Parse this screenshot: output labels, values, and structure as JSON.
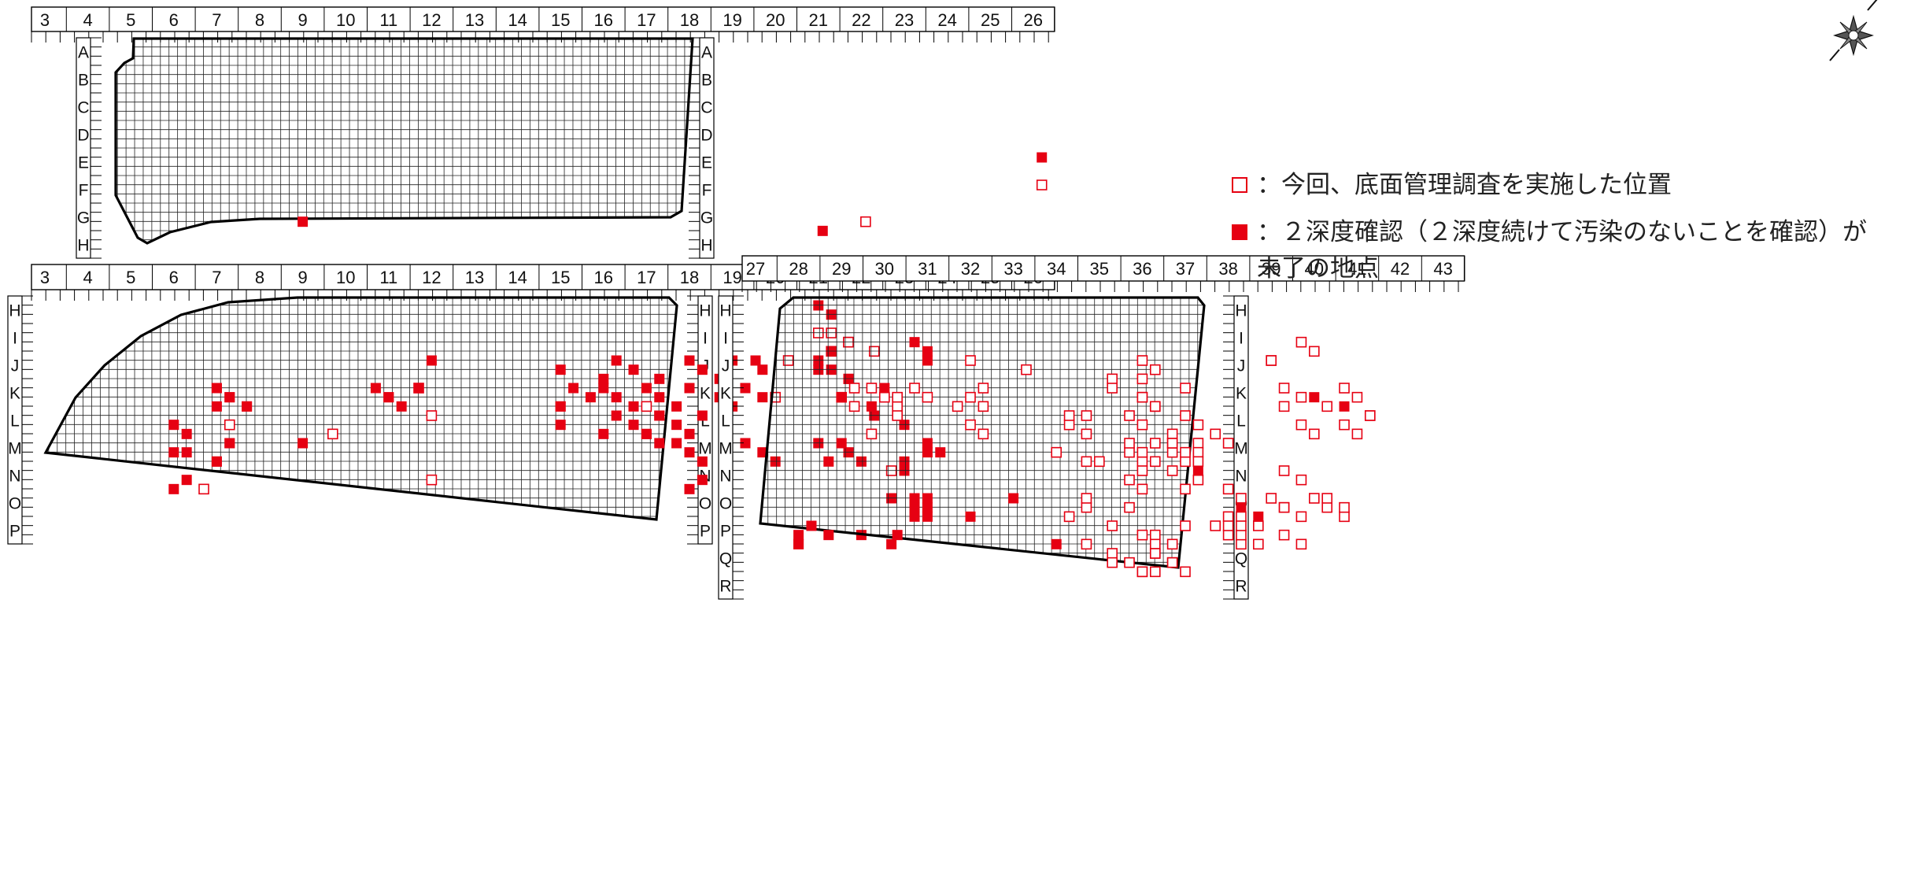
{
  "north_marker": "north-compass-icon",
  "colors": {
    "mark": "#e60012",
    "line": "#000000",
    "grid": "#222222"
  },
  "legend": {
    "open_label": "：今回、底面管理調査を実施した位置",
    "filled_label": "：２深度確認（２深度続けて汚染のないことを確認）が未了の地点"
  },
  "panels": [
    {
      "id": "upper-left",
      "columns": [
        "3",
        "4",
        "5",
        "6",
        "7",
        "8",
        "9",
        "10",
        "11",
        "12",
        "13",
        "14",
        "15",
        "16",
        "17",
        "18",
        "19",
        "20",
        "21",
        "22",
        "23",
        "24",
        "25",
        "26"
      ],
      "rows": [
        "A",
        "B",
        "C",
        "D",
        "E",
        "F",
        "G",
        "H"
      ],
      "filled": [
        [
          26.2,
          "E"
        ],
        [
          9.0,
          "G"
        ],
        [
          21.1,
          "G"
        ]
      ],
      "open": [
        [
          26.2,
          "F"
        ],
        [
          22.1,
          "G"
        ]
      ]
    },
    {
      "id": "lower-left",
      "columns": [
        "3",
        "4",
        "5",
        "6",
        "7",
        "8",
        "9",
        "10",
        "11",
        "12",
        "13",
        "14",
        "15",
        "16",
        "17",
        "18",
        "19",
        "20",
        "21",
        "22",
        "23",
        "24",
        "25",
        "26"
      ],
      "rows": [
        "H",
        "I",
        "J",
        "K",
        "L",
        "M",
        "N",
        "O",
        "P"
      ],
      "filled": [
        [
          21.0,
          "H"
        ],
        [
          21.3,
          "H"
        ],
        [
          21.3,
          "I"
        ],
        [
          18.0,
          "J"
        ],
        [
          21.0,
          "J"
        ],
        [
          21.7,
          "J"
        ],
        [
          21.0,
          "J"
        ],
        [
          21.3,
          "J"
        ],
        [
          21.7,
          "J"
        ],
        [
          12.0,
          "J"
        ],
        [
          15.0,
          "J"
        ],
        [
          16.0,
          "J"
        ],
        [
          16.3,
          "J"
        ],
        [
          16.7,
          "J"
        ],
        [
          17.3,
          "J"
        ],
        [
          18.0,
          "J"
        ],
        [
          18.3,
          "J"
        ],
        [
          18.7,
          "J"
        ],
        [
          19.0,
          "J"
        ],
        [
          19.7,
          "J"
        ],
        [
          7.0,
          "K"
        ],
        [
          7.0,
          "K"
        ],
        [
          7.3,
          "K"
        ],
        [
          7.7,
          "K"
        ],
        [
          7.0,
          "K"
        ],
        [
          7.3,
          "K"
        ],
        [
          7.7,
          "K"
        ],
        [
          10.7,
          "K"
        ],
        [
          11.0,
          "K"
        ],
        [
          11.3,
          "K"
        ],
        [
          11.7,
          "K"
        ],
        [
          11.0,
          "K"
        ],
        [
          15.0,
          "K"
        ],
        [
          15.3,
          "K"
        ],
        [
          15.7,
          "K"
        ],
        [
          15.0,
          "K"
        ],
        [
          16.0,
          "K"
        ],
        [
          16.3,
          "K"
        ],
        [
          16.7,
          "K"
        ],
        [
          17.0,
          "K"
        ],
        [
          17.3,
          "K"
        ],
        [
          17.7,
          "K"
        ],
        [
          18.0,
          "K"
        ],
        [
          18.7,
          "K"
        ],
        [
          19.0,
          "K"
        ],
        [
          19.3,
          "K"
        ],
        [
          19.7,
          "K"
        ],
        [
          17.0,
          "L"
        ],
        [
          17.3,
          "L"
        ],
        [
          17.7,
          "L"
        ],
        [
          18.0,
          "L"
        ],
        [
          18.3,
          "L"
        ],
        [
          15.0,
          "L"
        ],
        [
          16.0,
          "L"
        ],
        [
          16.3,
          "L"
        ],
        [
          16.7,
          "L"
        ],
        [
          17.0,
          "L"
        ],
        [
          17.3,
          "L"
        ],
        [
          6.0,
          "L"
        ],
        [
          6.3,
          "L"
        ],
        [
          7.3,
          "M"
        ],
        [
          6.0,
          "M"
        ],
        [
          7.0,
          "M"
        ],
        [
          7.3,
          "M"
        ],
        [
          6.3,
          "M"
        ],
        [
          7.0,
          "M"
        ],
        [
          9.0,
          "M"
        ],
        [
          6.3,
          "N"
        ],
        [
          6.0,
          "N"
        ],
        [
          17.3,
          "M"
        ],
        [
          18.0,
          "M"
        ],
        [
          18.3,
          "M"
        ],
        [
          17.7,
          "M"
        ],
        [
          18.3,
          "N"
        ],
        [
          18.0,
          "N"
        ],
        [
          19.3,
          "M"
        ],
        [
          19.7,
          "M"
        ],
        [
          20.0,
          "M"
        ],
        [
          21.0,
          "M"
        ],
        [
          21.7,
          "M"
        ],
        [
          22.0,
          "M"
        ],
        [
          22.3,
          "L"
        ],
        [
          23.0,
          "L"
        ],
        [
          23.0,
          "M"
        ],
        [
          23.0,
          "N"
        ],
        [
          22.0,
          "P"
        ],
        [
          22.7,
          "P"
        ],
        [
          22.7,
          "O"
        ]
      ],
      "open": [
        [
          21.0,
          "I"
        ],
        [
          21.7,
          "I"
        ],
        [
          22.3,
          "I"
        ],
        [
          21.3,
          "I"
        ],
        [
          21.7,
          "I"
        ],
        [
          21.3,
          "I"
        ],
        [
          20.3,
          "J"
        ],
        [
          20.0,
          "K"
        ],
        [
          17.0,
          "K"
        ],
        [
          11.7,
          "K"
        ],
        [
          7.3,
          "L"
        ],
        [
          9.7,
          "L"
        ],
        [
          12.0,
          "L"
        ],
        [
          12.0,
          "N"
        ],
        [
          6.7,
          "N"
        ],
        [
          22.7,
          "N"
        ]
      ]
    },
    {
      "id": "lower-right",
      "columns": [
        "27",
        "28",
        "29",
        "30",
        "31",
        "32",
        "33",
        "34",
        "35",
        "36",
        "37",
        "38",
        "39",
        "40",
        "41",
        "42",
        "43"
      ],
      "rows": [
        "H",
        "I",
        "J",
        "K",
        "L",
        "M",
        "N",
        "O",
        "P",
        "Q",
        "R"
      ],
      "filled": [
        [
          27.0,
          "J"
        ],
        [
          30.7,
          "I"
        ],
        [
          31.0,
          "I"
        ],
        [
          31.0,
          "J"
        ],
        [
          29.0,
          "K"
        ],
        [
          29.7,
          "K"
        ],
        [
          30.0,
          "K"
        ],
        [
          40.0,
          "K"
        ],
        [
          40.7,
          "K"
        ],
        [
          31.0,
          "M"
        ],
        [
          31.3,
          "M"
        ],
        [
          28.7,
          "M"
        ],
        [
          29.0,
          "M"
        ],
        [
          31.0,
          "M"
        ],
        [
          30.7,
          "O"
        ],
        [
          31.0,
          "O"
        ],
        [
          30.7,
          "O"
        ],
        [
          31.0,
          "O"
        ],
        [
          30.7,
          "O"
        ],
        [
          31.0,
          "O"
        ],
        [
          32.0,
          "O"
        ],
        [
          33.0,
          "O"
        ],
        [
          28.0,
          "P"
        ],
        [
          28.0,
          "P"
        ],
        [
          28.3,
          "P"
        ],
        [
          28.7,
          "P"
        ],
        [
          28.0,
          "P"
        ],
        [
          28.3,
          "P"
        ],
        [
          30.3,
          "P"
        ],
        [
          34.0,
          "P"
        ],
        [
          37.3,
          "N"
        ],
        [
          38.3,
          "O"
        ],
        [
          38.7,
          "O"
        ]
      ],
      "open": [
        [
          32.0,
          "J"
        ],
        [
          33.3,
          "J"
        ],
        [
          35.3,
          "J"
        ],
        [
          36.0,
          "J"
        ],
        [
          36.3,
          "J"
        ],
        [
          36.0,
          "J"
        ],
        [
          39.0,
          "J"
        ],
        [
          39.7,
          "I"
        ],
        [
          40.0,
          "I"
        ],
        [
          39.0,
          "J"
        ],
        [
          29.0,
          "K"
        ],
        [
          29.3,
          "K"
        ],
        [
          29.7,
          "K"
        ],
        [
          30.0,
          "K"
        ],
        [
          30.3,
          "K"
        ],
        [
          30.7,
          "K"
        ],
        [
          31.0,
          "K"
        ],
        [
          31.7,
          "K"
        ],
        [
          32.3,
          "K"
        ],
        [
          32.0,
          "K"
        ],
        [
          32.3,
          "K"
        ],
        [
          29.3,
          "K"
        ],
        [
          30.3,
          "K"
        ],
        [
          29.7,
          "L"
        ],
        [
          30.3,
          "L"
        ],
        [
          32.0,
          "L"
        ],
        [
          32.3,
          "L"
        ],
        [
          35.3,
          "K"
        ],
        [
          36.0,
          "K"
        ],
        [
          36.3,
          "K"
        ],
        [
          37.0,
          "K"
        ],
        [
          36.0,
          "K"
        ],
        [
          36.3,
          "K"
        ],
        [
          39.3,
          "K"
        ],
        [
          39.7,
          "K"
        ],
        [
          40.3,
          "K"
        ],
        [
          40.7,
          "K"
        ],
        [
          41.0,
          "K"
        ],
        [
          39.3,
          "K"
        ],
        [
          34.7,
          "L"
        ],
        [
          34.3,
          "L"
        ],
        [
          34.7,
          "L"
        ],
        [
          35.7,
          "L"
        ],
        [
          36.0,
          "L"
        ],
        [
          36.7,
          "L"
        ],
        [
          37.0,
          "L"
        ],
        [
          37.3,
          "L"
        ],
        [
          37.7,
          "L"
        ],
        [
          41.3,
          "L"
        ],
        [
          40.7,
          "L"
        ],
        [
          41.0,
          "L"
        ],
        [
          41.3,
          "L"
        ],
        [
          39.7,
          "L"
        ],
        [
          40.0,
          "L"
        ],
        [
          34.3,
          "L"
        ],
        [
          35.7,
          "M"
        ],
        [
          36.0,
          "M"
        ],
        [
          36.3,
          "M"
        ],
        [
          36.7,
          "M"
        ],
        [
          37.0,
          "M"
        ],
        [
          37.3,
          "M"
        ],
        [
          34.0,
          "M"
        ],
        [
          34.7,
          "M"
        ],
        [
          36.7,
          "M"
        ],
        [
          37.3,
          "M"
        ],
        [
          35.0,
          "M"
        ],
        [
          35.7,
          "M"
        ],
        [
          36.0,
          "M"
        ],
        [
          36.3,
          "M"
        ],
        [
          36.7,
          "M"
        ],
        [
          37.0,
          "M"
        ],
        [
          37.3,
          "M"
        ],
        [
          38.0,
          "M"
        ],
        [
          35.7,
          "N"
        ],
        [
          36.0,
          "N"
        ],
        [
          36.7,
          "N"
        ],
        [
          37.3,
          "N"
        ],
        [
          38.0,
          "N"
        ],
        [
          39.3,
          "N"
        ],
        [
          39.7,
          "N"
        ],
        [
          37.0,
          "N"
        ],
        [
          36.0,
          "N"
        ],
        [
          34.7,
          "O"
        ],
        [
          34.3,
          "O"
        ],
        [
          34.7,
          "O"
        ],
        [
          35.7,
          "O"
        ],
        [
          38.0,
          "O"
        ],
        [
          38.3,
          "O"
        ],
        [
          39.3,
          "O"
        ],
        [
          39.7,
          "O"
        ],
        [
          40.0,
          "O"
        ],
        [
          40.3,
          "O"
        ],
        [
          40.7,
          "O"
        ],
        [
          40.3,
          "O"
        ],
        [
          40.7,
          "O"
        ],
        [
          38.3,
          "O"
        ],
        [
          39.0,
          "O"
        ],
        [
          39.3,
          "O"
        ],
        [
          34.7,
          "P"
        ],
        [
          35.3,
          "P"
        ],
        [
          36.3,
          "P"
        ],
        [
          36.7,
          "P"
        ],
        [
          37.0,
          "P"
        ],
        [
          36.0,
          "P"
        ],
        [
          36.3,
          "P"
        ],
        [
          37.7,
          "P"
        ],
        [
          38.0,
          "P"
        ],
        [
          38.3,
          "P"
        ],
        [
          38.7,
          "P"
        ],
        [
          39.3,
          "P"
        ],
        [
          39.7,
          "P"
        ],
        [
          38.0,
          "P"
        ],
        [
          38.3,
          "P"
        ],
        [
          38.7,
          "P"
        ],
        [
          38.3,
          "P"
        ],
        [
          35.7,
          "Q"
        ],
        [
          36.0,
          "Q"
        ],
        [
          36.3,
          "Q"
        ],
        [
          36.7,
          "Q"
        ],
        [
          36.3,
          "Q"
        ],
        [
          35.3,
          "Q"
        ],
        [
          35.3,
          "Q"
        ],
        [
          36.0,
          "Q"
        ],
        [
          36.3,
          "Q"
        ],
        [
          36.7,
          "Q"
        ],
        [
          37.0,
          "Q"
        ]
      ]
    }
  ]
}
